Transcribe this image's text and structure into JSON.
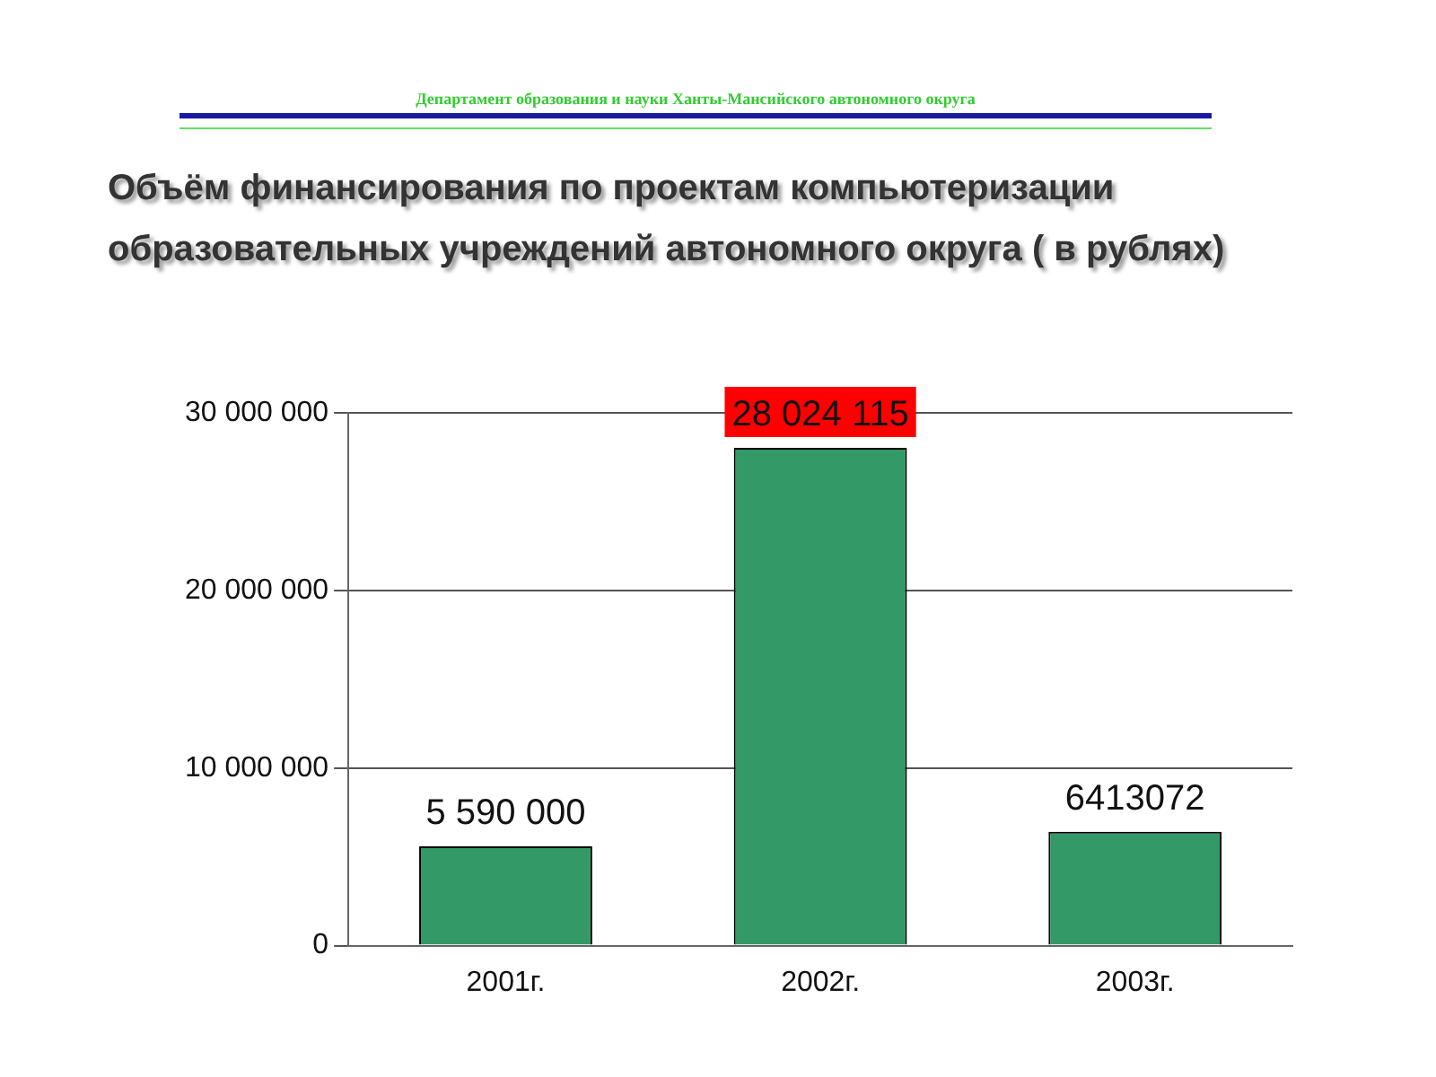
{
  "chart_data": {
    "type": "bar",
    "title": "Объём финансирования по проектам компьютеризации образовательных учреждений  автономного округа ( в рублях)",
    "annotations": [
      "Департамент образования и науки  Ханты-Мансийского автономного округа"
    ],
    "categories": [
      "2001г.",
      "2002г.",
      "2003г."
    ],
    "values": [
      5590000,
      28024115,
      6413072
    ],
    "value_labels": [
      "5 590 000",
      "28 024 115",
      "6413072"
    ],
    "color": "#339966",
    "ylim": [
      0,
      30000000
    ],
    "yticks": [
      {
        "value": 0,
        "label": "0"
      },
      {
        "value": 10000000,
        "label": "10 000 000"
      },
      {
        "value": 20000000,
        "label": "20 000 000"
      },
      {
        "value": 30000000,
        "label": "30 000 000"
      }
    ],
    "grid": "y"
  }
}
